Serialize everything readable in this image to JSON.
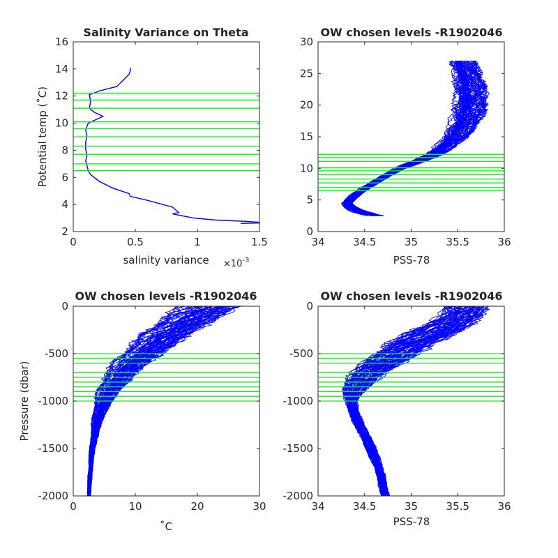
{
  "figure": {
    "background": "#ffffff",
    "profile_color": "#0000ff",
    "level_color": "#00ff00"
  },
  "chart_data": [
    {
      "id": "salvar",
      "type": "line",
      "title": "Salinity Variance on Theta",
      "xlabel": "salinity variance",
      "x_exponent_label": "×10",
      "x_exponent": "-3",
      "ylabel": "Potential temp (˚C)",
      "xlim": [
        0,
        1.5
      ],
      "ylim": [
        2,
        16
      ],
      "xticks": [
        0,
        0.5,
        1,
        1.5
      ],
      "xtick_labels": [
        "0",
        "0.5",
        "1",
        "1.5"
      ],
      "yticks": [
        2,
        4,
        6,
        8,
        10,
        12,
        14,
        16
      ],
      "ytick_labels": [
        "2",
        "4",
        "6",
        "8",
        "10",
        "12",
        "14",
        "16"
      ],
      "series": [
        {
          "x": [
            0.46,
            0.46,
            0.45,
            0.35,
            0.22,
            0.13,
            0.14,
            0.13,
            0.17,
            0.24,
            0.12,
            0.1,
            0.11,
            0.1,
            0.1,
            0.11,
            0.1,
            0.11,
            0.12,
            0.14,
            0.21,
            0.32,
            0.45,
            0.46,
            0.6,
            0.8,
            0.85,
            0.8,
            0.97,
            1.15,
            1.4,
            1.55,
            1.35
          ],
          "y": [
            14.1,
            13.9,
            13.6,
            12.7,
            12.4,
            12.1,
            11.6,
            11.1,
            10.8,
            10.5,
            10.0,
            9.5,
            9.1,
            8.6,
            8.1,
            7.6,
            7.2,
            6.9,
            6.5,
            6.2,
            5.7,
            5.2,
            4.8,
            4.6,
            4.3,
            3.8,
            3.4,
            3.3,
            3.0,
            2.85,
            2.75,
            2.65,
            2.6
          ]
        }
      ],
      "levels_y": [
        6.5,
        7.0,
        7.7,
        8.3,
        9.0,
        9.6,
        10.1,
        11.1,
        11.7,
        12.2
      ]
    },
    {
      "id": "theta_sal",
      "type": "line",
      "title": "OW chosen levels -R1902046",
      "xlabel": "PSS-78",
      "ylabel": "",
      "xlim": [
        34,
        36
      ],
      "ylim": [
        0,
        30
      ],
      "xticks": [
        34,
        34.5,
        35,
        35.5,
        36
      ],
      "xtick_labels": [
        "34",
        "34.5",
        "35",
        "35.5",
        "36"
      ],
      "yticks": [
        0,
        5,
        10,
        15,
        20,
        25,
        30
      ],
      "ytick_labels": [
        "0",
        "5",
        "10",
        "15",
        "20",
        "25",
        "30"
      ],
      "profile_count": 60,
      "envelope": {
        "y": [
          2.5,
          3.0,
          3.5,
          4.0,
          4.5,
          5.0,
          6.0,
          7.0,
          8.0,
          9.0,
          10.0,
          11.0,
          12.0,
          13.0,
          15.0,
          17.0,
          19.0,
          21.0,
          23.0,
          25.0,
          27.0
        ],
        "center_x": [
          34.62,
          34.48,
          34.38,
          34.33,
          34.31,
          34.34,
          34.42,
          34.52,
          34.63,
          34.75,
          34.88,
          35.05,
          35.22,
          35.33,
          35.48,
          35.57,
          35.62,
          35.64,
          35.63,
          35.6,
          35.55
        ],
        "spread_x": [
          0.08,
          0.08,
          0.07,
          0.06,
          0.05,
          0.05,
          0.05,
          0.05,
          0.05,
          0.05,
          0.06,
          0.07,
          0.08,
          0.1,
          0.12,
          0.14,
          0.16,
          0.16,
          0.15,
          0.14,
          0.12
        ]
      },
      "levels_y": [
        6.5,
        7.0,
        7.7,
        8.3,
        9.0,
        9.6,
        10.1,
        11.1,
        11.7,
        12.2
      ]
    },
    {
      "id": "pres_temp",
      "type": "line",
      "title": "OW chosen levels -R1902046",
      "xlabel": "˚C",
      "ylabel": "Pressure (dbar)",
      "xlim": [
        0,
        30
      ],
      "ylim": [
        -2000,
        0
      ],
      "xticks": [
        0,
        10,
        20,
        30
      ],
      "xtick_labels": [
        "0",
        "10",
        "20",
        "30"
      ],
      "yticks": [
        -2000,
        -1500,
        -1000,
        -500,
        0
      ],
      "ytick_labels": [
        "-2000",
        "-1500",
        "-1000",
        "-500",
        "0"
      ],
      "profile_count": 60,
      "envelope": {
        "y": [
          0,
          -100,
          -200,
          -300,
          -400,
          -500,
          -600,
          -700,
          -800,
          -900,
          -1000,
          -1100,
          -1200,
          -1300,
          -1400,
          -1500,
          -1600,
          -1700,
          -1800,
          -1900,
          -2000
        ],
        "center_x": [
          22.0,
          19.5,
          17.0,
          15.0,
          13.0,
          11.0,
          9.3,
          7.8,
          6.6,
          5.6,
          4.9,
          4.3,
          3.9,
          3.6,
          3.3,
          3.1,
          2.9,
          2.8,
          2.7,
          2.6,
          2.5
        ],
        "spread_x": [
          4.5,
          4.2,
          4.0,
          3.6,
          3.3,
          3.0,
          2.7,
          2.4,
          2.0,
          1.7,
          1.3,
          1.0,
          0.8,
          0.6,
          0.5,
          0.4,
          0.35,
          0.3,
          0.3,
          0.25,
          0.25
        ]
      },
      "levels_y": [
        -500,
        -550,
        -600,
        -700,
        -750,
        -800,
        -850,
        -900,
        -950,
        -1000
      ]
    },
    {
      "id": "pres_sal",
      "type": "line",
      "title": "OW chosen levels -R1902046",
      "xlabel": "PSS-78",
      "ylabel": "",
      "xlim": [
        34,
        36
      ],
      "ylim": [
        -2000,
        0
      ],
      "xticks": [
        34,
        34.5,
        35,
        35.5,
        36
      ],
      "xtick_labels": [
        "34",
        "34.5",
        "35",
        "35.5",
        "36"
      ],
      "yticks": [
        -2000,
        -1500,
        -1000,
        -500,
        0
      ],
      "ytick_labels": [
        "-2000",
        "-1500",
        "-1000",
        "-500",
        "0"
      ],
      "profile_count": 60,
      "envelope": {
        "y": [
          0,
          -100,
          -200,
          -300,
          -400,
          -500,
          -600,
          -700,
          -800,
          -900,
          -1000,
          -1100,
          -1200,
          -1300,
          -1400,
          -1500,
          -1600,
          -1700,
          -1800,
          -1900,
          -2000
        ],
        "center_x": [
          35.6,
          35.55,
          35.4,
          35.2,
          35.0,
          34.85,
          34.7,
          34.55,
          34.45,
          34.38,
          34.36,
          34.38,
          34.42,
          34.47,
          34.52,
          34.57,
          34.61,
          34.65,
          34.68,
          34.7,
          34.72
        ],
        "spread_x": [
          0.2,
          0.22,
          0.24,
          0.25,
          0.24,
          0.22,
          0.2,
          0.18,
          0.15,
          0.1,
          0.06,
          0.05,
          0.05,
          0.05,
          0.05,
          0.05,
          0.05,
          0.04,
          0.04,
          0.04,
          0.04
        ]
      },
      "levels_y": [
        -500,
        -550,
        -600,
        -700,
        -750,
        -800,
        -850,
        -900,
        -950,
        -1000
      ]
    }
  ]
}
